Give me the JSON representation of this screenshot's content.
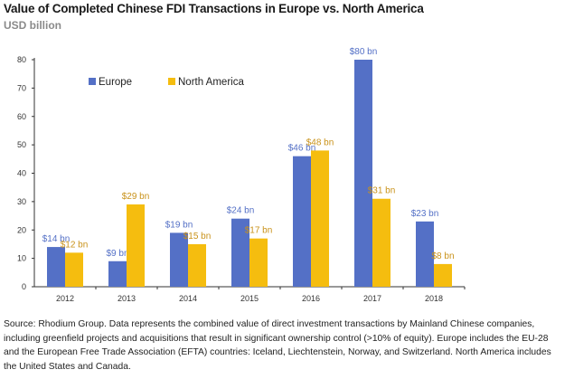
{
  "title": "Value of Completed Chinese FDI Transactions in Europe vs. North America",
  "subtitle": "USD billion",
  "source": "Source: Rhodium Group. Data represents the combined value of direct investment transactions by Mainland Chinese companies, including greenfield projects and acquisitions that result in significant ownership control (>10% of equity). Europe includes the EU-28 and the European Free Trade Association (EFTA) countries: Iceland, Liechtenstein, Norway, and Switzerland. North America includes the United States and Canada.",
  "colors": {
    "europe": "#5470c6",
    "north_america": "#f5bd0f",
    "na_label": "#c9921a"
  },
  "chart_data": {
    "type": "bar",
    "categories": [
      "2012",
      "2013",
      "2014",
      "2015",
      "2016",
      "2017",
      "2018"
    ],
    "series": [
      {
        "name": "Europe",
        "values": [
          14,
          9,
          19,
          24,
          46,
          80,
          23
        ],
        "labels": [
          "$14 bn",
          "$9 bn",
          "$19 bn",
          "$24 bn",
          "$46 bn",
          "$80 bn",
          "$23 bn"
        ]
      },
      {
        "name": "North America",
        "values": [
          12,
          29,
          15,
          17,
          48,
          31,
          8
        ],
        "labels": [
          "$12 bn",
          "$29 bn",
          "$15 bn",
          "$17 bn",
          "$48 bn",
          "$31 bn",
          "$8 bn"
        ]
      }
    ],
    "ylim": [
      0,
      80
    ],
    "yticks": [
      0,
      10,
      20,
      30,
      40,
      50,
      60,
      70,
      80
    ],
    "legend_position": "top-left",
    "grid": false
  }
}
